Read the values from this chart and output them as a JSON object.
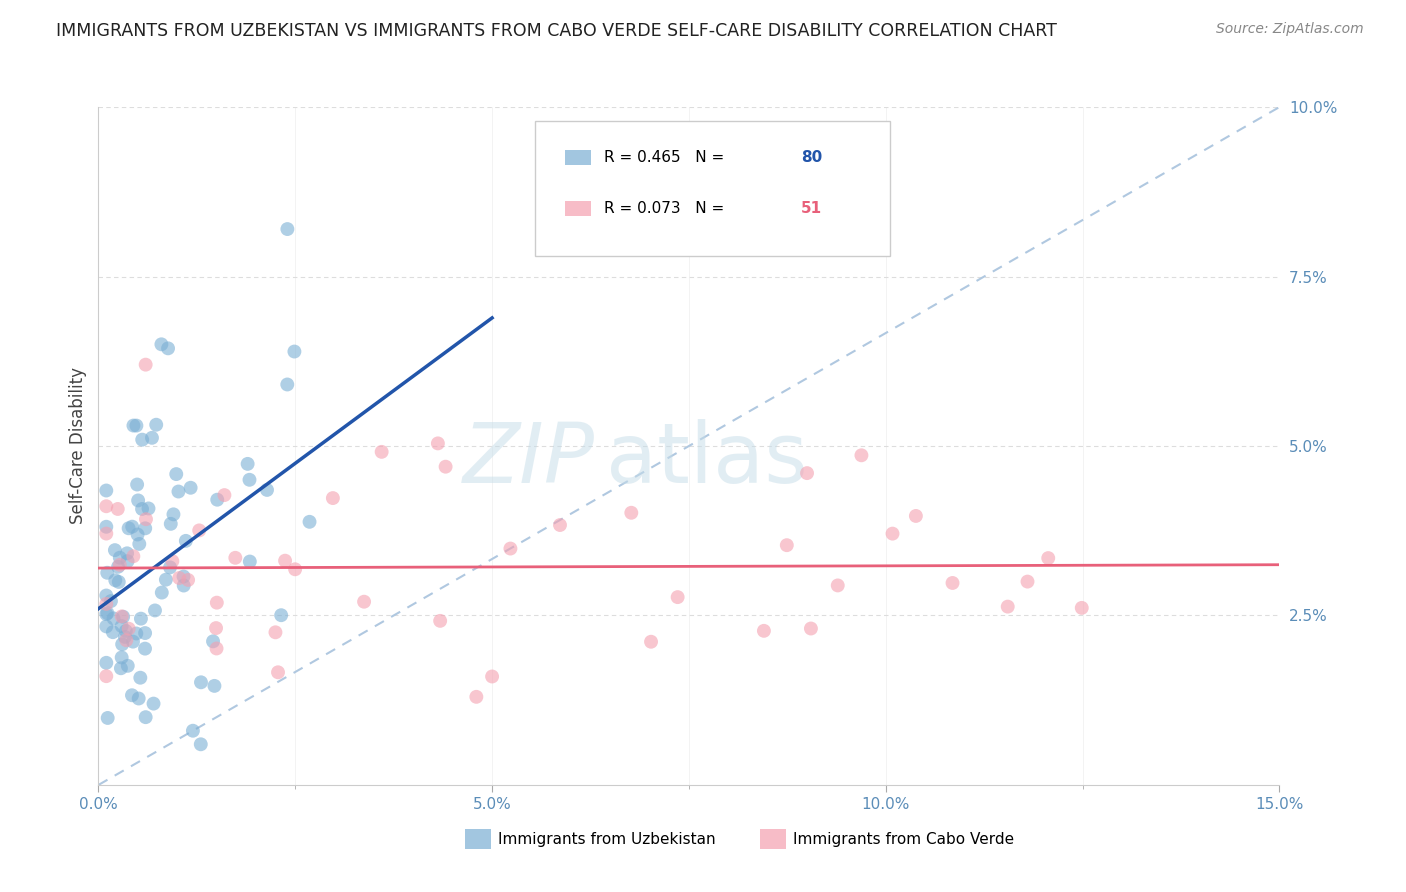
{
  "title": "IMMIGRANTS FROM UZBEKISTAN VS IMMIGRANTS FROM CABO VERDE SELF-CARE DISABILITY CORRELATION CHART",
  "source": "Source: ZipAtlas.com",
  "ylabel": "Self-Care Disability",
  "x_min": 0.0,
  "x_max": 0.15,
  "y_min": 0.0,
  "y_max": 0.1,
  "blue_color": "#7BAFD4",
  "pink_color": "#F4A0B0",
  "blue_line_color": "#2255AA",
  "pink_line_color": "#E8607A",
  "dashed_line_color": "#B0C8E0",
  "grid_color": "#DDDDDD",
  "legend_R_blue": "0.465",
  "legend_N_blue": "80",
  "legend_R_pink": "0.073",
  "legend_N_pink": "51",
  "legend_label_blue": "Immigrants from Uzbekistan",
  "legend_label_pink": "Immigrants from Cabo Verde",
  "title_color": "#222222",
  "source_color": "#888888",
  "tick_color": "#5B8DB8",
  "ylabel_color": "#444444"
}
